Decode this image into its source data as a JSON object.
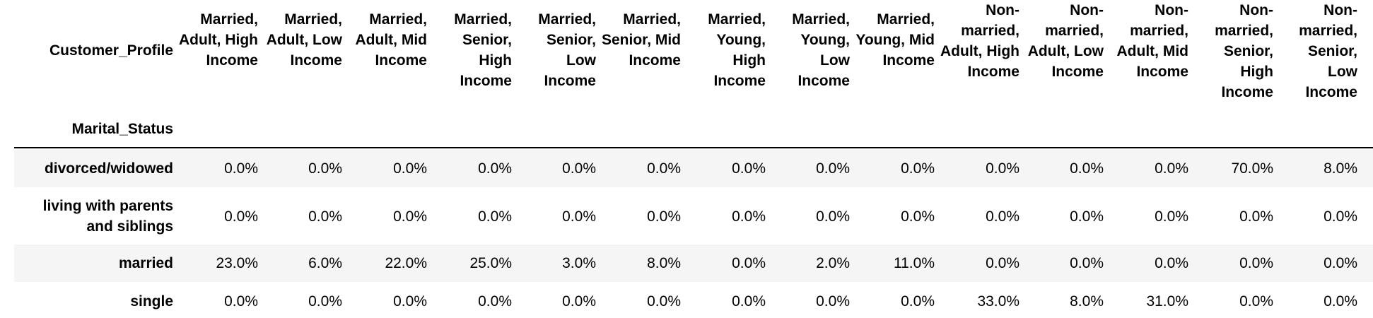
{
  "table": {
    "index_header": "Customer_Profile",
    "row_header": "Marital_Status",
    "columns": [
      "Married, Adult, High Income",
      "Married, Adult, Low Income",
      "Married, Adult, Mid Income",
      "Married, Senior, High Income",
      "Married, Senior, Low Income",
      "Married, Senior, Mid Income",
      "Married, Young, High Income",
      "Married, Young, Low Income",
      "Married, Young, Mid Income",
      "Non-married, Adult, High Income",
      "Non-married, Adult, Low Income",
      "Non-married, Adult, Mid Income",
      "Non-married, Senior, High Income",
      "Non-married, Senior, Low Income"
    ],
    "rows": [
      {
        "label": "divorced/widowed",
        "values": [
          "0.0%",
          "0.0%",
          "0.0%",
          "0.0%",
          "0.0%",
          "0.0%",
          "0.0%",
          "0.0%",
          "0.0%",
          "0.0%",
          "0.0%",
          "0.0%",
          "70.0%",
          "8.0%"
        ]
      },
      {
        "label": "living with parents and siblings",
        "values": [
          "0.0%",
          "0.0%",
          "0.0%",
          "0.0%",
          "0.0%",
          "0.0%",
          "0.0%",
          "0.0%",
          "0.0%",
          "0.0%",
          "0.0%",
          "0.0%",
          "0.0%",
          "0.0%"
        ]
      },
      {
        "label": "married",
        "values": [
          "23.0%",
          "6.0%",
          "22.0%",
          "25.0%",
          "3.0%",
          "8.0%",
          "0.0%",
          "2.0%",
          "11.0%",
          "0.0%",
          "0.0%",
          "0.0%",
          "0.0%",
          "0.0%"
        ]
      },
      {
        "label": "single",
        "values": [
          "0.0%",
          "0.0%",
          "0.0%",
          "0.0%",
          "0.0%",
          "0.0%",
          "0.0%",
          "0.0%",
          "0.0%",
          "33.0%",
          "8.0%",
          "31.0%",
          "0.0%",
          "0.0%"
        ]
      }
    ]
  }
}
